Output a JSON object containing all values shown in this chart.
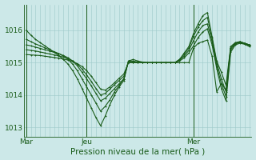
{
  "title": "Pression niveau de la mer( hPa )",
  "bg_color": "#cce8e8",
  "grid_color": "#9dc8c8",
  "line_color": "#1a5c1a",
  "ylim": [
    1012.7,
    1016.8
  ],
  "yticks": [
    1013,
    1014,
    1015,
    1016
  ],
  "xtick_labels": [
    "Mar",
    "Jeu",
    "Mer"
  ],
  "n_points": 49,
  "vline_x": [
    0,
    13,
    36
  ],
  "series": [
    [
      1016.0,
      1015.85,
      1015.72,
      1015.62,
      1015.52,
      1015.42,
      1015.32,
      1015.22,
      1015.1,
      1014.95,
      1014.75,
      1014.5,
      1014.2,
      1013.9,
      1013.6,
      1013.3,
      1013.05,
      1013.35,
      1013.7,
      1014.0,
      1014.25,
      1014.45,
      1015.05,
      1015.1,
      1015.05,
      1015.02,
      1015.0,
      1015.0,
      1015.0,
      1015.0,
      1015.0,
      1015.0,
      1015.0,
      1015.0,
      1015.0,
      1015.0,
      1015.45,
      1015.6,
      1015.65,
      1015.7,
      1015.2,
      1014.1,
      1014.35,
      1014.15,
      1015.45,
      1015.6,
      1015.65,
      1015.6,
      1015.55
    ],
    [
      1015.72,
      1015.65,
      1015.58,
      1015.52,
      1015.46,
      1015.4,
      1015.34,
      1015.28,
      1015.2,
      1015.1,
      1014.95,
      1014.75,
      1014.5,
      1014.25,
      1014.0,
      1013.75,
      1013.5,
      1013.65,
      1013.85,
      1014.1,
      1014.3,
      1014.5,
      1015.05,
      1015.05,
      1015.02,
      1015.0,
      1015.0,
      1015.0,
      1015.0,
      1015.0,
      1015.0,
      1015.0,
      1015.0,
      1015.1,
      1015.3,
      1015.5,
      1015.9,
      1016.2,
      1016.45,
      1016.55,
      1015.8,
      1015.05,
      1014.7,
      1014.3,
      1015.5,
      1015.62,
      1015.65,
      1015.6,
      1015.55
    ],
    [
      1015.55,
      1015.52,
      1015.48,
      1015.44,
      1015.4,
      1015.36,
      1015.32,
      1015.28,
      1015.22,
      1015.15,
      1015.05,
      1014.9,
      1014.7,
      1014.5,
      1014.28,
      1014.05,
      1013.82,
      1013.9,
      1014.05,
      1014.2,
      1014.35,
      1014.5,
      1015.05,
      1015.02,
      1015.0,
      1015.0,
      1015.0,
      1015.0,
      1015.0,
      1015.0,
      1015.0,
      1015.0,
      1015.0,
      1015.1,
      1015.25,
      1015.45,
      1015.82,
      1016.1,
      1016.3,
      1016.4,
      1015.75,
      1015.0,
      1014.5,
      1014.1,
      1015.45,
      1015.6,
      1015.63,
      1015.6,
      1015.55
    ],
    [
      1015.4,
      1015.38,
      1015.36,
      1015.33,
      1015.3,
      1015.27,
      1015.24,
      1015.21,
      1015.17,
      1015.12,
      1015.05,
      1014.95,
      1014.8,
      1014.62,
      1014.42,
      1014.2,
      1014.0,
      1014.05,
      1014.18,
      1014.32,
      1014.45,
      1014.58,
      1015.02,
      1015.0,
      1015.0,
      1015.0,
      1015.0,
      1015.0,
      1015.0,
      1015.0,
      1015.0,
      1015.0,
      1015.0,
      1015.08,
      1015.2,
      1015.38,
      1015.68,
      1015.95,
      1016.15,
      1016.2,
      1015.65,
      1014.9,
      1014.35,
      1013.95,
      1015.38,
      1015.58,
      1015.62,
      1015.58,
      1015.52
    ],
    [
      1015.25,
      1015.24,
      1015.23,
      1015.22,
      1015.2,
      1015.18,
      1015.16,
      1015.14,
      1015.11,
      1015.08,
      1015.03,
      1014.97,
      1014.88,
      1014.75,
      1014.58,
      1014.38,
      1014.18,
      1014.15,
      1014.25,
      1014.38,
      1014.52,
      1014.65,
      1015.0,
      1015.0,
      1015.0,
      1015.0,
      1015.0,
      1015.0,
      1015.0,
      1015.0,
      1015.0,
      1015.0,
      1015.0,
      1015.05,
      1015.15,
      1015.3,
      1015.52,
      1015.78,
      1015.95,
      1016.05,
      1015.55,
      1014.82,
      1014.2,
      1013.82,
      1015.32,
      1015.55,
      1015.6,
      1015.57,
      1015.5
    ]
  ],
  "marker_size": 2.0,
  "line_width": 0.8,
  "title_fontsize": 7.5,
  "tick_fontsize": 6.5
}
